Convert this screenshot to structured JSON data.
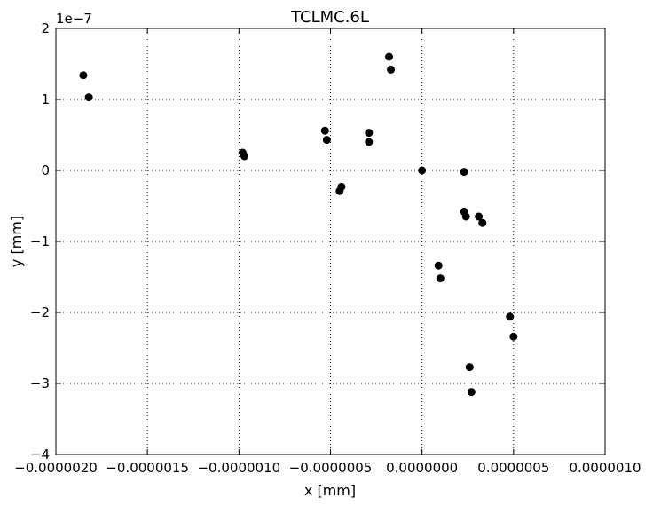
{
  "chart_data": {
    "type": "scatter",
    "title": "TCLMC.6L",
    "xlabel": "x [mm]",
    "ylabel": "y [mm]",
    "y_offset_label": "1e−7",
    "xlim": [
      -2e-06,
      1e-06
    ],
    "ylim": [
      -4,
      2
    ],
    "y_scale_note": "y values in units of 1e-7 mm",
    "x_ticks": [
      -2e-06,
      -1.5e-06,
      -1e-06,
      -5e-07,
      0.0,
      5e-07,
      1e-06
    ],
    "x_tick_labels": [
      "−0.0000020",
      "−0.0000015",
      "−0.0000010",
      "−0.0000005",
      "0.0000000",
      "0.0000005",
      "0.0000010"
    ],
    "y_ticks": [
      -4,
      -3,
      -2,
      -1,
      0,
      1,
      2
    ],
    "y_tick_labels": [
      "−4",
      "−3",
      "−2",
      "−1",
      "0",
      "1",
      "2"
    ],
    "grid": true,
    "marker_color": "#000000",
    "points": [
      {
        "x": -1.85e-06,
        "y": 1.34
      },
      {
        "x": -1.82e-06,
        "y": 1.03
      },
      {
        "x": -9.8e-07,
        "y": 0.25
      },
      {
        "x": -9.7e-07,
        "y": 0.2
      },
      {
        "x": -5.3e-07,
        "y": 0.56
      },
      {
        "x": -5.2e-07,
        "y": 0.43
      },
      {
        "x": -4.4e-07,
        "y": -0.23
      },
      {
        "x": -4.5e-07,
        "y": -0.29
      },
      {
        "x": -2.9e-07,
        "y": 0.53
      },
      {
        "x": -2.9e-07,
        "y": 0.4
      },
      {
        "x": -1.8e-07,
        "y": 1.6
      },
      {
        "x": -1.7e-07,
        "y": 1.42
      },
      {
        "x": 0.0,
        "y": 0.0
      },
      {
        "x": 2.3e-07,
        "y": -0.02
      },
      {
        "x": 2.3e-07,
        "y": -0.58
      },
      {
        "x": 2.4e-07,
        "y": -0.65
      },
      {
        "x": 3.1e-07,
        "y": -0.65
      },
      {
        "x": 3.3e-07,
        "y": -0.74
      },
      {
        "x": 9e-08,
        "y": -1.34
      },
      {
        "x": 1e-07,
        "y": -1.52
      },
      {
        "x": 2.6e-07,
        "y": -2.77
      },
      {
        "x": 2.7e-07,
        "y": -3.12
      },
      {
        "x": 4.8e-07,
        "y": -2.06
      },
      {
        "x": 5e-07,
        "y": -2.34
      }
    ]
  }
}
